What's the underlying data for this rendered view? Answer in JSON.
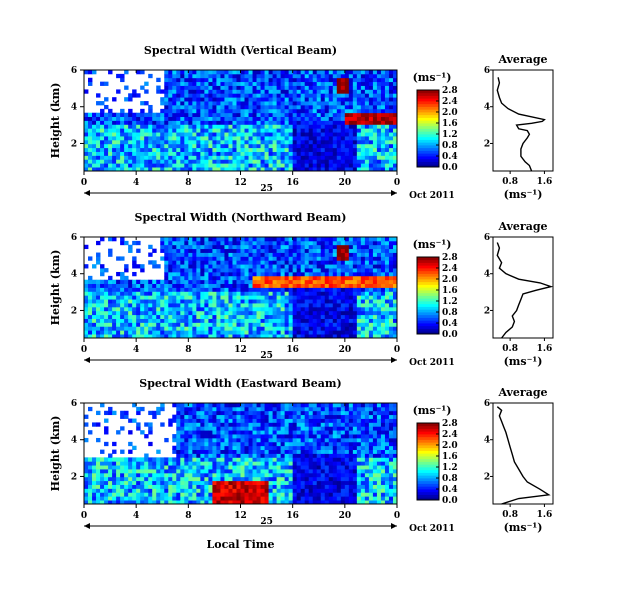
{
  "figure": {
    "x_tick_labels": [
      "0",
      "4",
      "8",
      "12",
      "16",
      "20",
      "0"
    ],
    "day_label": "25",
    "date_label": "Oct 2011",
    "xlabel_bottom": "Local Time",
    "ylabel": "Height (km)",
    "y_tick_labels": [
      "2",
      "4",
      "6"
    ],
    "colorbar_unit": "(ms⁻¹)",
    "colorbar_ticks": [
      "0.0",
      "0.4",
      "0.8",
      "1.2",
      "1.6",
      "2.0",
      "2.4",
      "2.8"
    ],
    "profile_title": "Average",
    "profile_y_ticks": [
      "2",
      "4",
      "6"
    ],
    "profile_x_ticks": [
      "0.8",
      "1.6"
    ],
    "profile_xlabel": "(ms⁻¹)"
  },
  "chart_data": [
    {
      "type": "heatmap",
      "title": "Spectral Width (Vertical Beam)",
      "xlabel": "25 Oct 2011 (Local Time)",
      "ylabel": "Height (km)",
      "xlim": [
        0,
        24
      ],
      "ylim": [
        0.5,
        6
      ],
      "colorbar": {
        "label": "(ms⁻¹)",
        "range": [
          0,
          2.8
        ],
        "colormap": "jet"
      },
      "features": [
        {
          "x": [
            0,
            24
          ],
          "y": [
            0.5,
            3
          ],
          "value": 0.9
        },
        {
          "x": [
            0,
            6
          ],
          "y": [
            3.7,
            6
          ],
          "value": null
        },
        {
          "x": [
            16,
            21
          ],
          "y": [
            0.5,
            3.2
          ],
          "value": 0.3
        },
        {
          "x": [
            20,
            24
          ],
          "y": [
            3,
            3.6
          ],
          "value": 2.7
        },
        {
          "x": [
            19.5,
            20.3
          ],
          "y": [
            4.8,
            5.6
          ],
          "value": 2.8
        }
      ]
    },
    {
      "type": "heatmap",
      "title": "Spectral Width (Northward Beam)",
      "xlabel": "25 Oct 2011 (Local Time)",
      "ylabel": "Height (km)",
      "xlim": [
        0,
        24
      ],
      "ylim": [
        0.5,
        6
      ],
      "colorbar": {
        "label": "(ms⁻¹)",
        "range": [
          0,
          2.8
        ],
        "colormap": "jet"
      },
      "features": [
        {
          "x": [
            0,
            24
          ],
          "y": [
            0.5,
            3
          ],
          "value": 0.9
        },
        {
          "x": [
            0,
            6
          ],
          "y": [
            3.7,
            6
          ],
          "value": null
        },
        {
          "x": [
            16,
            21
          ],
          "y": [
            0.5,
            3.2
          ],
          "value": 0.3
        },
        {
          "x": [
            13,
            24
          ],
          "y": [
            3.2,
            3.8
          ],
          "value": 2.2
        },
        {
          "x": [
            19.5,
            20.3
          ],
          "y": [
            4.8,
            5.6
          ],
          "value": 2.8
        }
      ]
    },
    {
      "type": "heatmap",
      "title": "Spectral Width (Eastward Beam)",
      "xlabel": "Local Time",
      "ylabel": "Height (km)",
      "xlim": [
        0,
        24
      ],
      "ylim": [
        0.5,
        6
      ],
      "colorbar": {
        "label": "(ms⁻¹)",
        "range": [
          0,
          2.8
        ],
        "colormap": "jet"
      },
      "features": [
        {
          "x": [
            0,
            24
          ],
          "y": [
            0.5,
            3
          ],
          "value": 0.9
        },
        {
          "x": [
            0,
            7
          ],
          "y": [
            3,
            6
          ],
          "value": null
        },
        {
          "x": [
            16,
            21
          ],
          "y": [
            0.5,
            3.2
          ],
          "value": 0.3
        },
        {
          "x": [
            10,
            14
          ],
          "y": [
            0.5,
            1.8
          ],
          "value": 2.6
        }
      ]
    },
    {
      "type": "line",
      "title": "Average",
      "xlabel": "(ms⁻¹)",
      "ylabel": "Height (km)",
      "xlim": [
        0.4,
        1.8
      ],
      "ylim": [
        0.5,
        6
      ],
      "series": [
        {
          "x": [
            1.3,
            1.25,
            1.15,
            1.05,
            1.05,
            1.1,
            1.2,
            1.25,
            1.2,
            1.0,
            0.95,
            1.3,
            1.55,
            1.6,
            1.0,
            0.75,
            0.6,
            0.55,
            0.5,
            0.55,
            0.52
          ],
          "y": [
            0.5,
            0.8,
            1.0,
            1.3,
            1.7,
            2.0,
            2.3,
            2.5,
            2.7,
            2.8,
            3.0,
            3.1,
            3.2,
            3.3,
            3.6,
            3.9,
            4.2,
            4.5,
            4.9,
            5.3,
            5.6
          ]
        }
      ]
    },
    {
      "type": "line",
      "title": "Average",
      "xlabel": "(ms⁻¹)",
      "ylabel": "Height (km)",
      "xlim": [
        0.4,
        1.8
      ],
      "ylim": [
        0.5,
        6
      ],
      "series": [
        {
          "x": [
            0.6,
            0.7,
            0.85,
            0.9,
            0.85,
            0.95,
            1.0,
            1.05,
            1.1,
            1.4,
            1.75,
            1.5,
            1.0,
            0.7,
            0.55,
            0.6,
            0.5,
            0.55,
            0.5
          ],
          "y": [
            0.5,
            0.8,
            1.1,
            1.4,
            1.7,
            2.0,
            2.3,
            2.6,
            2.9,
            3.1,
            3.3,
            3.5,
            3.7,
            4.0,
            4.3,
            4.6,
            5.0,
            5.4,
            5.7
          ]
        }
      ]
    },
    {
      "type": "line",
      "title": "Average",
      "xlabel": "(ms⁻¹)",
      "ylabel": "Height (km)",
      "xlim": [
        0.4,
        1.8
      ],
      "ylim": [
        0.5,
        6
      ],
      "series": [
        {
          "x": [
            0.6,
            1.0,
            1.7,
            1.5,
            1.2,
            1.1,
            1.0,
            0.9,
            0.85,
            0.8,
            0.75,
            0.7,
            0.65,
            0.6,
            0.55,
            0.6,
            0.5
          ],
          "y": [
            0.5,
            0.8,
            1.0,
            1.3,
            1.7,
            2.0,
            2.4,
            2.8,
            3.2,
            3.6,
            4.0,
            4.4,
            4.7,
            5.0,
            5.3,
            5.6,
            5.8
          ]
        }
      ]
    }
  ]
}
